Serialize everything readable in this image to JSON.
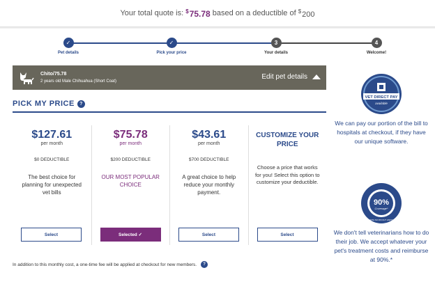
{
  "quote": {
    "prefix": "Your total quote is:",
    "currency": "$",
    "amount": "75.78",
    "middle": "based on a deductible of",
    "deductible_currency": "$",
    "deductible": "200"
  },
  "steps": [
    {
      "num": "✓",
      "label": "Pet details",
      "status": "done"
    },
    {
      "num": "✓",
      "label": "Pick your price",
      "status": "done"
    },
    {
      "num": "3",
      "label": "Your details",
      "status": "todo"
    },
    {
      "num": "4",
      "label": "Welcome!",
      "status": "todo"
    }
  ],
  "pet": {
    "name": "Chito/75.78",
    "description": "2 years old Male Chihuahua (Short Coat)",
    "edit_label": "Edit pet details"
  },
  "pick": {
    "title": "PICK MY PRICE",
    "help": "?"
  },
  "plans": [
    {
      "price": "$127.61",
      "per": "per month",
      "deductible": "$0 DEDUCTIBLE",
      "blurb": "The best choice for planning for unexpected vet bills",
      "button": "Select"
    },
    {
      "price": "$75.78",
      "per": "per month",
      "deductible": "$200 DEDUCTIBLE",
      "blurb": "OUR MOST POPULAR CHOICE",
      "button": "Selected ✓"
    },
    {
      "price": "$43.61",
      "per": "per month",
      "deductible": "$700 DEDUCTIBLE",
      "blurb": "A great choice to help reduce your monthly payment.",
      "button": "Select"
    }
  ],
  "custom": {
    "title": "CUSTOMIZE YOUR PRICE",
    "blurb": "Choose a price that works for you! Select this option to customize your deductible.",
    "button": "Select"
  },
  "footnote": {
    "text": "In addition to this monthly cost, a one-time fee will be applied at checkout for new members.",
    "help": "?"
  },
  "side": {
    "vet_badge": {
      "line1": "VET DIRECT PAY",
      "line2": "available"
    },
    "vet_text": "We can pay our portion of the bill to hospitals at checkout, if they have our unique software.",
    "coverage_badge": {
      "big": "90%",
      "small": "Coverage*",
      "ring": "WITH NO PAYOUT LIMITS"
    },
    "coverage_text": "We don't tell veterinarians how to do their job. We accept whatever your pet's treatment costs and reimburse at 90%.*"
  },
  "colors": {
    "brand_blue": "#2b4a8a",
    "accent_purple": "#7b2d7b",
    "pet_band": "#68665b"
  }
}
